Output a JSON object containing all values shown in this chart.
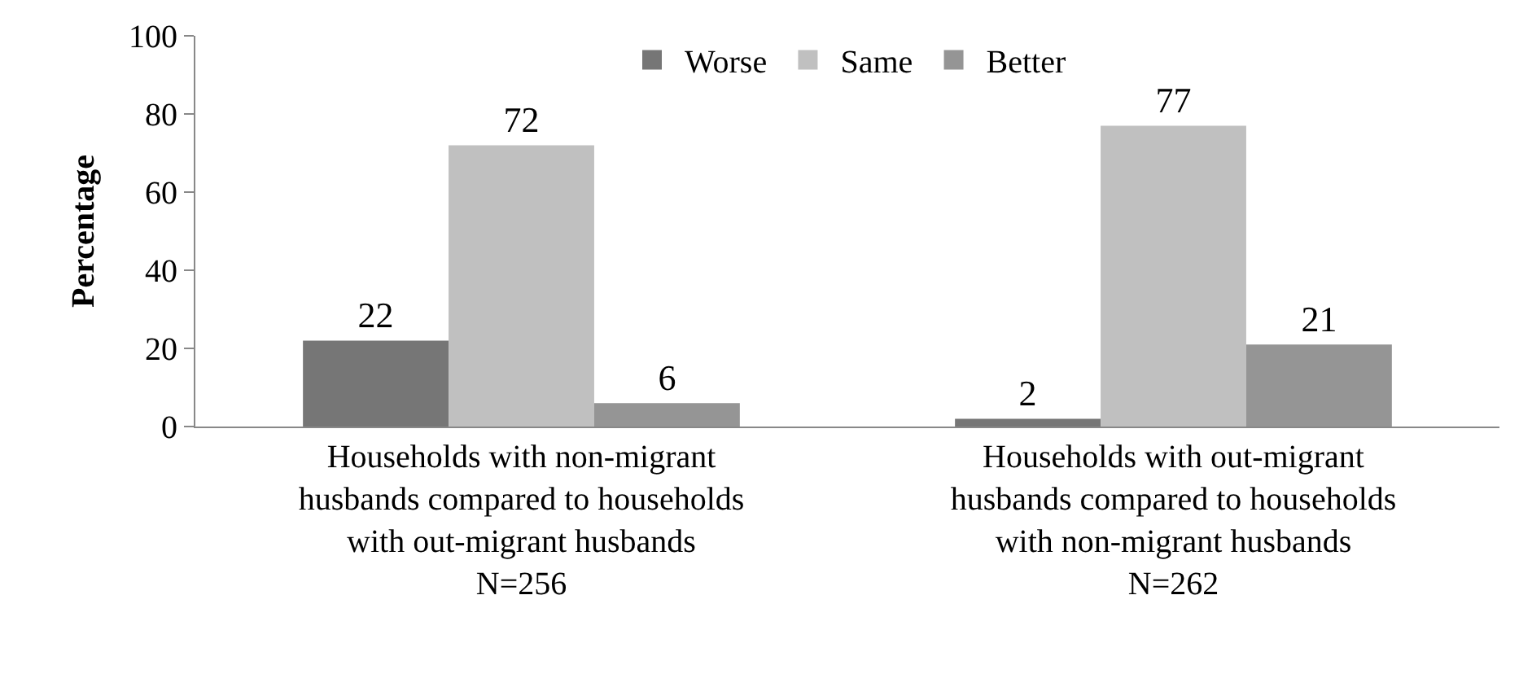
{
  "chart_data": {
    "type": "bar",
    "ylabel": "Percentage",
    "categories": [
      "Households with non-migrant\nhusbands compared to households\nwith out-migrant husbands\nN=256",
      "Households with out-migrant\nhusbands compared to households\nwith non-migrant husbands\nN=262"
    ],
    "series": [
      {
        "name": "Worse",
        "color": "#767676",
        "values": [
          22,
          2
        ]
      },
      {
        "name": "Same",
        "color": "#c0c0c0",
        "values": [
          72,
          77
        ]
      },
      {
        "name": "Better",
        "color": "#959595",
        "values": [
          6,
          21
        ]
      }
    ],
    "ylim": [
      0,
      100
    ],
    "yticks": [
      0,
      20,
      40,
      60,
      80,
      100
    ],
    "data_labels": true,
    "legend": "top"
  }
}
